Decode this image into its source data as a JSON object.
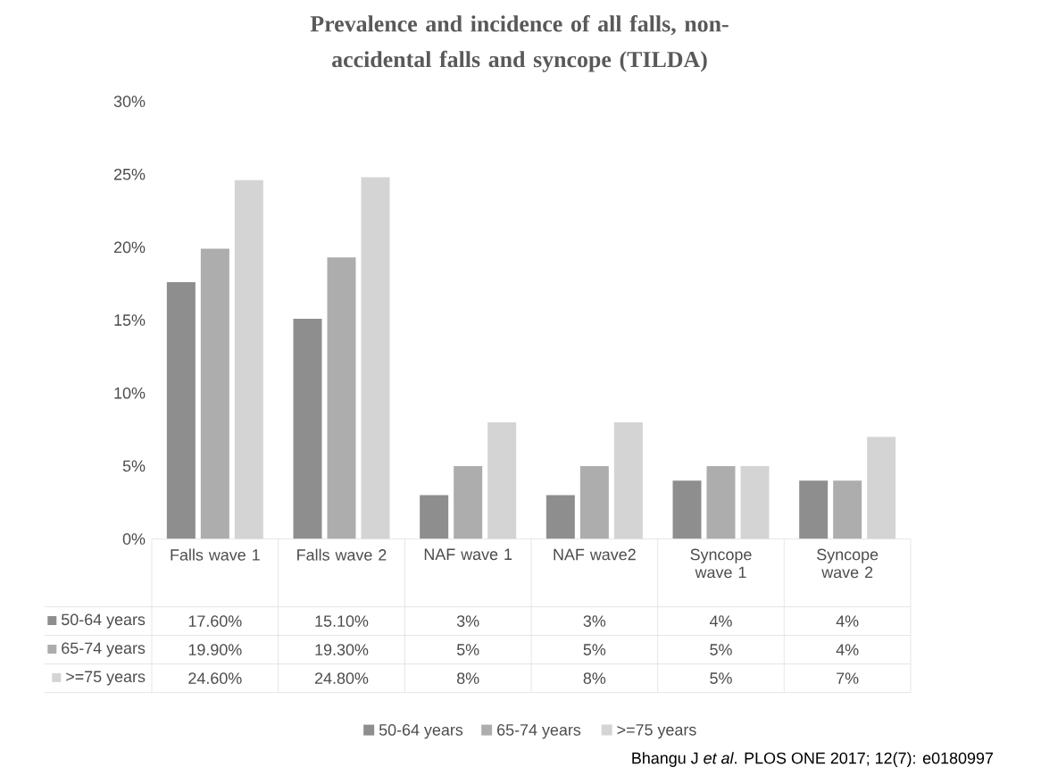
{
  "chart_data": {
    "type": "bar",
    "title": "Prevalence and incidence of all falls, non-accidental falls and syncope (TILDA)",
    "categories": [
      "Falls wave 1",
      "Falls wave 2",
      "NAF wave 1",
      "NAF wave2",
      "Syncope wave 1",
      "Syncope wave 2"
    ],
    "series": [
      {
        "name": "50-64 years",
        "color": "#8e8e8e",
        "values": [
          17.6,
          15.1,
          3,
          3,
          4,
          4
        ],
        "value_labels": [
          "17.60%",
          "15.10%",
          "3%",
          "3%",
          "4%",
          "4%"
        ]
      },
      {
        "name": "65-74 years",
        "color": "#adadad",
        "values": [
          19.9,
          19.3,
          5,
          5,
          5,
          4
        ],
        "value_labels": [
          "19.90%",
          "19.30%",
          "5%",
          "5%",
          "5%",
          "4%"
        ]
      },
      {
        "name": ">=75 years",
        "color": "#d4d4d4",
        "values": [
          24.6,
          24.8,
          8,
          8,
          5,
          7
        ],
        "value_labels": [
          "24.60%",
          "24.80%",
          "8%",
          "8%",
          "5%",
          "7%"
        ]
      }
    ],
    "ylim": [
      0,
      30
    ],
    "yticks": [
      {
        "value": 0,
        "label": "0%"
      },
      {
        "value": 5,
        "label": "5%"
      },
      {
        "value": 10,
        "label": "10%"
      },
      {
        "value": 15,
        "label": "15%"
      },
      {
        "value": 20,
        "label": "20%"
      },
      {
        "value": 25,
        "label": "25%"
      },
      {
        "value": 30,
        "label": "30%"
      }
    ],
    "grid": false,
    "legend": "bottom",
    "annotations": [
      "Bhangu J *et al*. PLOS ONE 2017; 12(7): e0180997"
    ]
  }
}
